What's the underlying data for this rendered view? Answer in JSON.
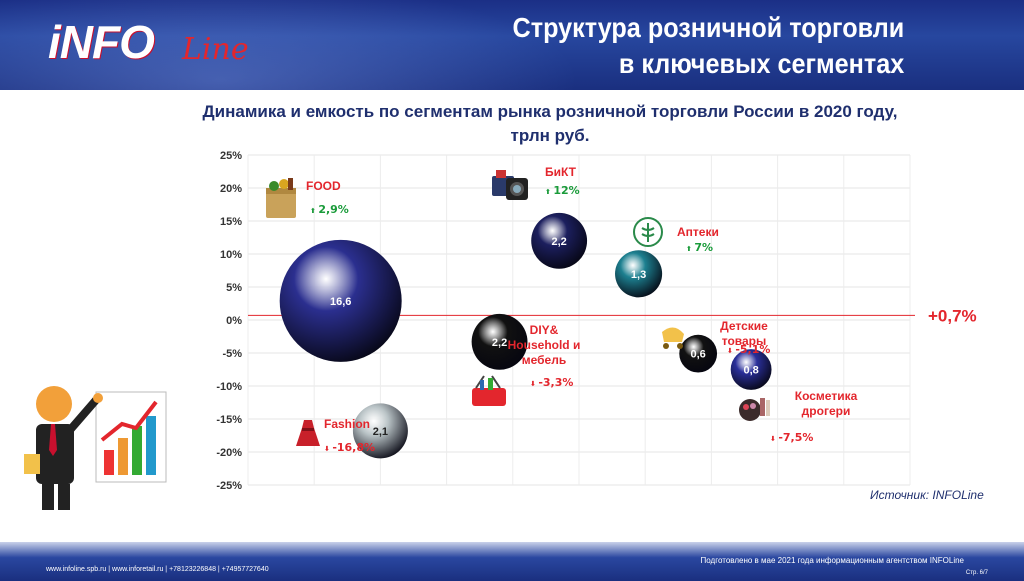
{
  "header": {
    "logo_main": "iNFO",
    "logo_sub": "Line",
    "title_line1": "Структура розничной торговли",
    "title_line2": "в ключевых сегментах"
  },
  "chart_title_line1": "Динамика и емкость по сегментам рынка розничной торговли России в 2020 году,",
  "chart_title_line2": "трлн руб.",
  "chart_data": {
    "type": "bubble",
    "ylim": [
      -25,
      25
    ],
    "xlim": [
      0,
      10
    ],
    "yticks": [
      "25%",
      "20%",
      "15%",
      "10%",
      "5%",
      "0%",
      "-5%",
      "-10%",
      "-15%",
      "-20%",
      "-25%"
    ],
    "reference_line": {
      "value": 0.7,
      "label": "+0,7%",
      "color": "#e3262d"
    },
    "points": [
      {
        "name": "FOOD",
        "x": 1.4,
        "y": 2.9,
        "size": 16.6,
        "size_label": "16,6",
        "growth_label": "2,9%",
        "direction": "up",
        "color": "#2b2f8f"
      },
      {
        "name": "БиКТ",
        "x": 4.7,
        "y": 12,
        "size": 2.2,
        "size_label": "2,2",
        "growth_label": "12%",
        "direction": "up",
        "color": "#1c1f5e"
      },
      {
        "name": "Аптеки",
        "x": 5.9,
        "y": 7,
        "size": 1.3,
        "size_label": "1,3",
        "growth_label": "7%",
        "direction": "up",
        "color": "#1d8090"
      },
      {
        "name": "DIY& Household и мебель",
        "x": 3.8,
        "y": -3.3,
        "size": 2.2,
        "size_label": "2,2",
        "growth_label": "-3,3%",
        "direction": "down",
        "color": "#111111"
      },
      {
        "name": "Детские товары",
        "x": 6.8,
        "y": -5.1,
        "size": 0.6,
        "size_label": "0,6",
        "growth_label": "-5,1%",
        "direction": "down",
        "color": "#111111"
      },
      {
        "name": "Косметика дрогери",
        "x": 7.6,
        "y": -7.5,
        "size": 0.8,
        "size_label": "0,8",
        "growth_label": "-7,5%",
        "direction": "down",
        "color": "#2a2f9a"
      },
      {
        "name": "Fashion",
        "x": 2.0,
        "y": -16.8,
        "size": 2.1,
        "size_label": "2,1",
        "growth_label": "-16,8%",
        "direction": "down",
        "color": "#b9c3c6"
      }
    ]
  },
  "source": "Источник: INFOLine",
  "footer": {
    "contacts": "www.infoline.spb.ru | www.inforetail.ru | +78123226848 | +74957727640",
    "prepared": "Подготовлено в мае 2021 года информационным агентством INFOLine",
    "page": "Стр. 6/7"
  },
  "colors": {
    "up": "#1a9b3a",
    "down": "#e3262d",
    "label": "#e3262d",
    "title": "#1f2f6e"
  },
  "icons": [
    "food-bag-icon",
    "camera-phone-icon",
    "pharmacy-icon",
    "baby-stroller-icon",
    "cosmetics-icon",
    "shopping-basket-icon",
    "dress-icon",
    "businessman-chart-icon"
  ]
}
